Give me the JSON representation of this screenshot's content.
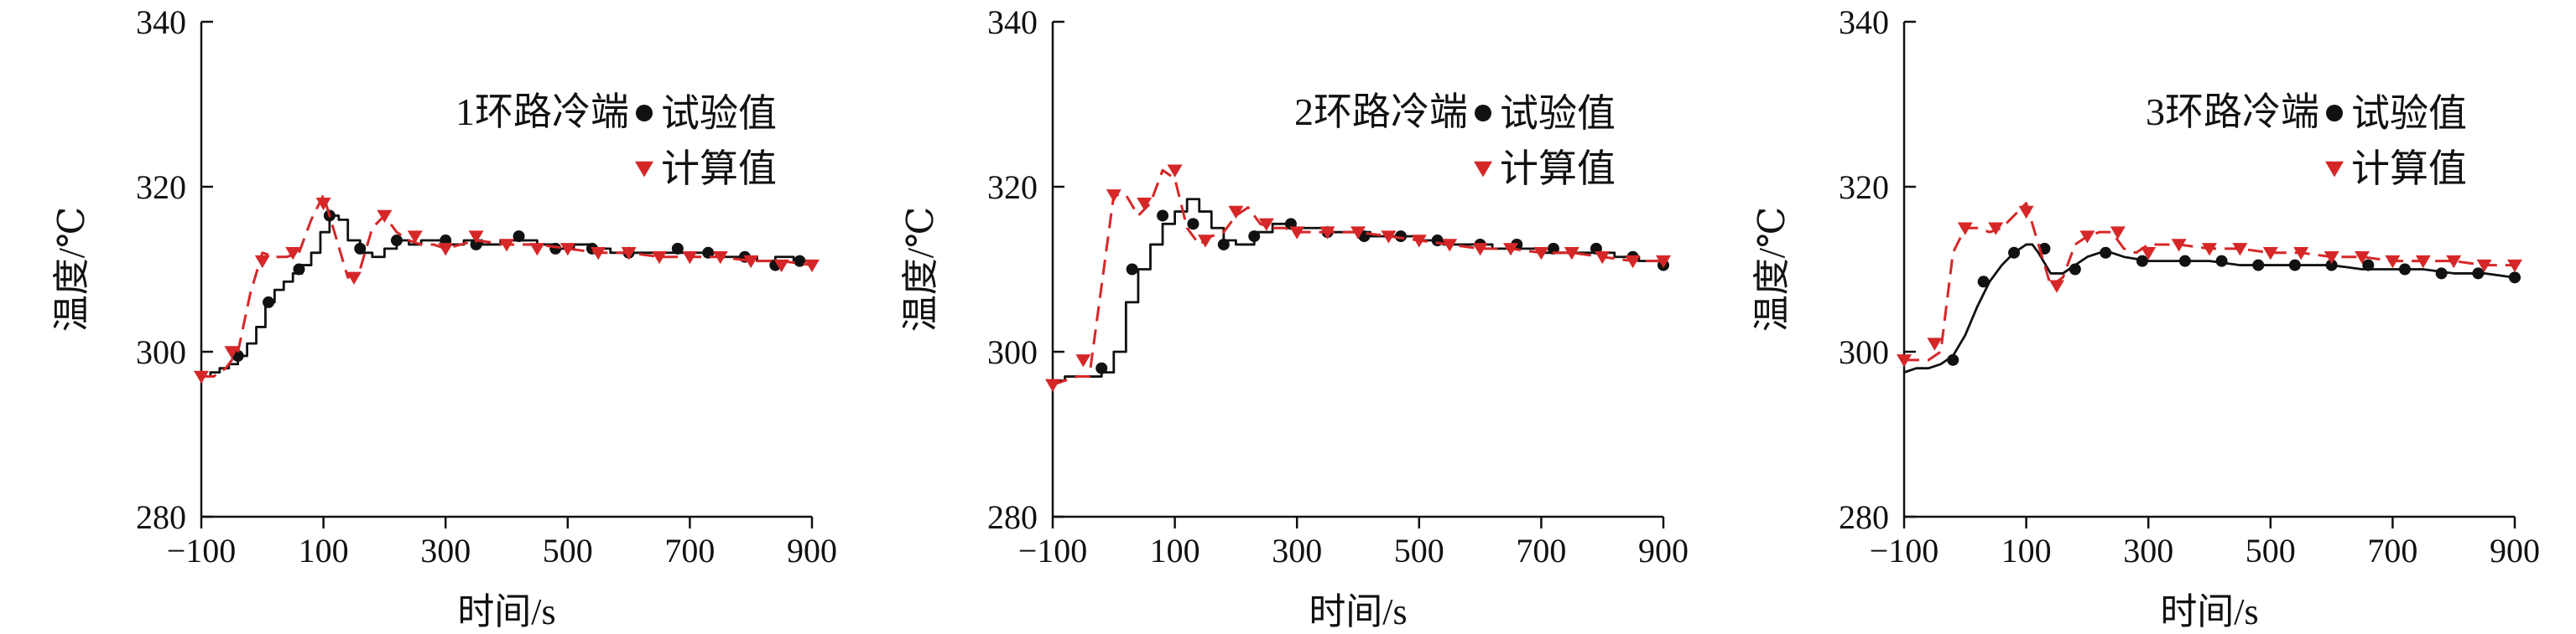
{
  "chart_data": [
    {
      "type": "line",
      "title": "1环路冷端",
      "xlabel": "时间/s",
      "ylabel": "温度/℃",
      "xlim": [
        -100,
        900
      ],
      "ylim": [
        280,
        340
      ],
      "xticks": [
        "−100",
        "100",
        "300",
        "500",
        "700",
        "900"
      ],
      "yticks": [
        "280",
        "300",
        "320",
        "340"
      ],
      "grid": false,
      "legend": "top-right",
      "series": [
        {
          "name": "试验值",
          "style": "stepped-solid",
          "marker": "circle",
          "color": "#111111",
          "x": [
            -100,
            -85,
            -70,
            -55,
            -40,
            -25,
            -10,
            5,
            20,
            35,
            50,
            65,
            80,
            95,
            110,
            125,
            140,
            160,
            180,
            200,
            220,
            240,
            260,
            280,
            300,
            330,
            360,
            390,
            420,
            450,
            480,
            510,
            540,
            570,
            600,
            630,
            660,
            690,
            720,
            750,
            780,
            810,
            840,
            870,
            900
          ],
          "y": [
            297,
            297.5,
            298,
            298.5,
            299.5,
            301,
            303,
            306,
            307.5,
            308.5,
            309.5,
            310.5,
            312,
            314.5,
            316.5,
            316,
            313.5,
            312,
            311.5,
            312.5,
            313.5,
            313,
            313.5,
            313.5,
            313,
            313.5,
            313,
            313.5,
            313.5,
            313,
            312.5,
            313,
            312.5,
            312,
            312,
            312,
            312,
            312,
            312,
            311.5,
            311.5,
            311,
            311.5,
            311,
            311
          ],
          "marker_x": [
            -40,
            10,
            60,
            110,
            160,
            220,
            300,
            350,
            420,
            480,
            540,
            600,
            680,
            730,
            790,
            840,
            880
          ],
          "marker_y": [
            299.5,
            306,
            310,
            316.5,
            312.5,
            313.5,
            313.5,
            313,
            314,
            312.5,
            312.5,
            312,
            312.5,
            312,
            311.5,
            310.5,
            311
          ]
        },
        {
          "name": "计算值",
          "style": "dashed",
          "marker": "triangle-down",
          "color": "#d62728",
          "x": [
            -100,
            -80,
            -60,
            -40,
            -20,
            0,
            20,
            40,
            60,
            80,
            100,
            120,
            140,
            160,
            180,
            200,
            220,
            240,
            260,
            280,
            300,
            350,
            400,
            450,
            500,
            550,
            600,
            650,
            700,
            750,
            800,
            850,
            900
          ],
          "y": [
            297,
            297,
            298,
            300,
            307,
            312,
            311.5,
            311.5,
            312,
            316,
            319,
            314,
            309,
            310,
            315,
            316.5,
            314.5,
            313.5,
            313,
            313,
            312.5,
            313.5,
            313,
            313,
            312.5,
            312,
            312,
            311.5,
            311.5,
            311.5,
            311,
            311,
            310.5
          ],
          "marker_x": [
            -100,
            -50,
            0,
            50,
            100,
            150,
            200,
            250,
            300,
            350,
            400,
            450,
            500,
            550,
            600,
            650,
            700,
            750,
            800,
            850,
            900
          ],
          "marker_y": [
            297,
            300,
            311,
            312,
            318,
            309,
            316.5,
            314,
            312.5,
            314,
            313,
            312.5,
            312.5,
            312,
            312,
            311.5,
            311.5,
            311.5,
            311,
            310.5,
            310.5
          ]
        }
      ]
    },
    {
      "type": "line",
      "title": "2环路冷端",
      "xlabel": "时间/s",
      "ylabel": "温度/℃",
      "xlim": [
        -100,
        900
      ],
      "ylim": [
        280,
        340
      ],
      "xticks": [
        "−100",
        "100",
        "300",
        "500",
        "700",
        "900"
      ],
      "yticks": [
        "280",
        "300",
        "320",
        "340"
      ],
      "grid": false,
      "legend": "top-right",
      "series": [
        {
          "name": "试验值",
          "style": "stepped-solid",
          "marker": "circle",
          "color": "#111111",
          "x": [
            -100,
            -80,
            -60,
            -40,
            -20,
            0,
            20,
            40,
            60,
            80,
            100,
            120,
            140,
            160,
            180,
            200,
            230,
            260,
            290,
            320,
            350,
            380,
            420,
            460,
            500,
            540,
            580,
            620,
            660,
            700,
            740,
            780,
            820,
            860,
            900
          ],
          "y": [
            296.5,
            297,
            297,
            297,
            297.5,
            300,
            306,
            310,
            313,
            315.5,
            317,
            318.5,
            317,
            315,
            313.5,
            313,
            314.5,
            315.5,
            315,
            315,
            314.5,
            314.5,
            314,
            314,
            313.5,
            313,
            313,
            312.5,
            312.5,
            312,
            312,
            312,
            311.5,
            311,
            310.5
          ],
          "marker_x": [
            -20,
            30,
            80,
            130,
            180,
            230,
            290,
            350,
            410,
            470,
            530,
            600,
            660,
            720,
            790,
            850,
            900
          ],
          "marker_y": [
            298,
            310,
            316.5,
            315.5,
            313,
            314,
            315.5,
            314.5,
            314,
            314,
            313.5,
            313,
            313,
            312.5,
            312.5,
            311.5,
            310.5
          ]
        },
        {
          "name": "计算值",
          "style": "dashed",
          "marker": "triangle-down",
          "color": "#d62728",
          "x": [
            -100,
            -80,
            -60,
            -40,
            -20,
            0,
            20,
            40,
            60,
            80,
            100,
            120,
            140,
            160,
            180,
            200,
            220,
            240,
            260,
            280,
            300,
            350,
            400,
            450,
            500,
            550,
            600,
            650,
            700,
            750,
            800,
            850,
            900
          ],
          "y": [
            296,
            296.5,
            297,
            297,
            308,
            319,
            319,
            316.5,
            318,
            322,
            321,
            315,
            313,
            314,
            314.5,
            316.5,
            317.5,
            315.5,
            315,
            315,
            314.5,
            314.5,
            314.5,
            314,
            313.5,
            313,
            312.5,
            312.5,
            312,
            312,
            311.5,
            311,
            311
          ],
          "marker_x": [
            -100,
            -50,
            0,
            50,
            100,
            150,
            200,
            250,
            300,
            350,
            400,
            450,
            500,
            550,
            600,
            650,
            700,
            750,
            800,
            850,
            900
          ],
          "marker_y": [
            296,
            299,
            319,
            318,
            322,
            313.5,
            317,
            315.5,
            314.5,
            314.5,
            314.5,
            314,
            313.5,
            313,
            312.5,
            312.5,
            312,
            312,
            311.5,
            311,
            311
          ]
        }
      ]
    },
    {
      "type": "line",
      "title": "3环路冷端",
      "xlabel": "时间/s",
      "ylabel": "温度/℃",
      "xlim": [
        -100,
        900
      ],
      "ylim": [
        280,
        340
      ],
      "xticks": [
        "−100",
        "100",
        "300",
        "500",
        "700",
        "900"
      ],
      "yticks": [
        "280",
        "300",
        "320",
        "340"
      ],
      "grid": false,
      "legend": "top-right",
      "series": [
        {
          "name": "试验值",
          "style": "solid",
          "marker": "circle",
          "color": "#111111",
          "x": [
            -100,
            -80,
            -60,
            -40,
            -20,
            0,
            20,
            40,
            60,
            80,
            100,
            110,
            120,
            140,
            160,
            180,
            200,
            220,
            240,
            260,
            300,
            350,
            400,
            450,
            500,
            550,
            600,
            650,
            700,
            750,
            800,
            850,
            900
          ],
          "y": [
            297.5,
            298,
            298,
            298.5,
            299.5,
            302,
            305.5,
            308.5,
            310.5,
            312,
            313,
            313,
            312,
            309.5,
            309.5,
            310.5,
            311.5,
            312,
            312,
            311.5,
            311,
            311,
            311,
            310.5,
            310.5,
            310.5,
            310.5,
            310,
            310,
            310,
            309.5,
            309.5,
            309
          ],
          "marker_x": [
            -20,
            30,
            80,
            130,
            180,
            230,
            290,
            360,
            420,
            480,
            540,
            600,
            660,
            720,
            780,
            840,
            900
          ],
          "marker_y": [
            299,
            308.5,
            312,
            312.5,
            310,
            312,
            311,
            311,
            311,
            310.5,
            310.5,
            310.5,
            310.5,
            310,
            309.5,
            309.5,
            309
          ]
        },
        {
          "name": "计算值",
          "style": "dashed",
          "marker": "triangle-down",
          "color": "#d62728",
          "x": [
            -100,
            -80,
            -60,
            -40,
            -20,
            0,
            20,
            40,
            60,
            80,
            100,
            120,
            140,
            160,
            180,
            200,
            220,
            240,
            260,
            280,
            300,
            350,
            400,
            450,
            500,
            550,
            600,
            650,
            700,
            750,
            800,
            850,
            900
          ],
          "y": [
            299,
            299,
            299,
            300,
            312,
            315,
            315,
            314.5,
            315,
            316.5,
            318,
            313,
            308,
            309,
            313,
            314,
            314.5,
            314.5,
            312.5,
            312,
            313,
            313,
            312.5,
            312.5,
            312,
            312,
            311.5,
            311.5,
            311,
            311,
            311,
            310.5,
            310.5
          ],
          "marker_x": [
            -100,
            -50,
            0,
            50,
            100,
            150,
            200,
            250,
            300,
            350,
            400,
            450,
            500,
            550,
            600,
            650,
            700,
            750,
            800,
            850,
            900
          ],
          "marker_y": [
            299,
            301,
            315,
            315,
            317,
            308,
            314,
            314.5,
            312,
            313,
            312.5,
            312.5,
            312,
            312,
            311.5,
            311.5,
            311,
            311,
            311,
            310.5,
            310.5
          ]
        }
      ]
    }
  ]
}
